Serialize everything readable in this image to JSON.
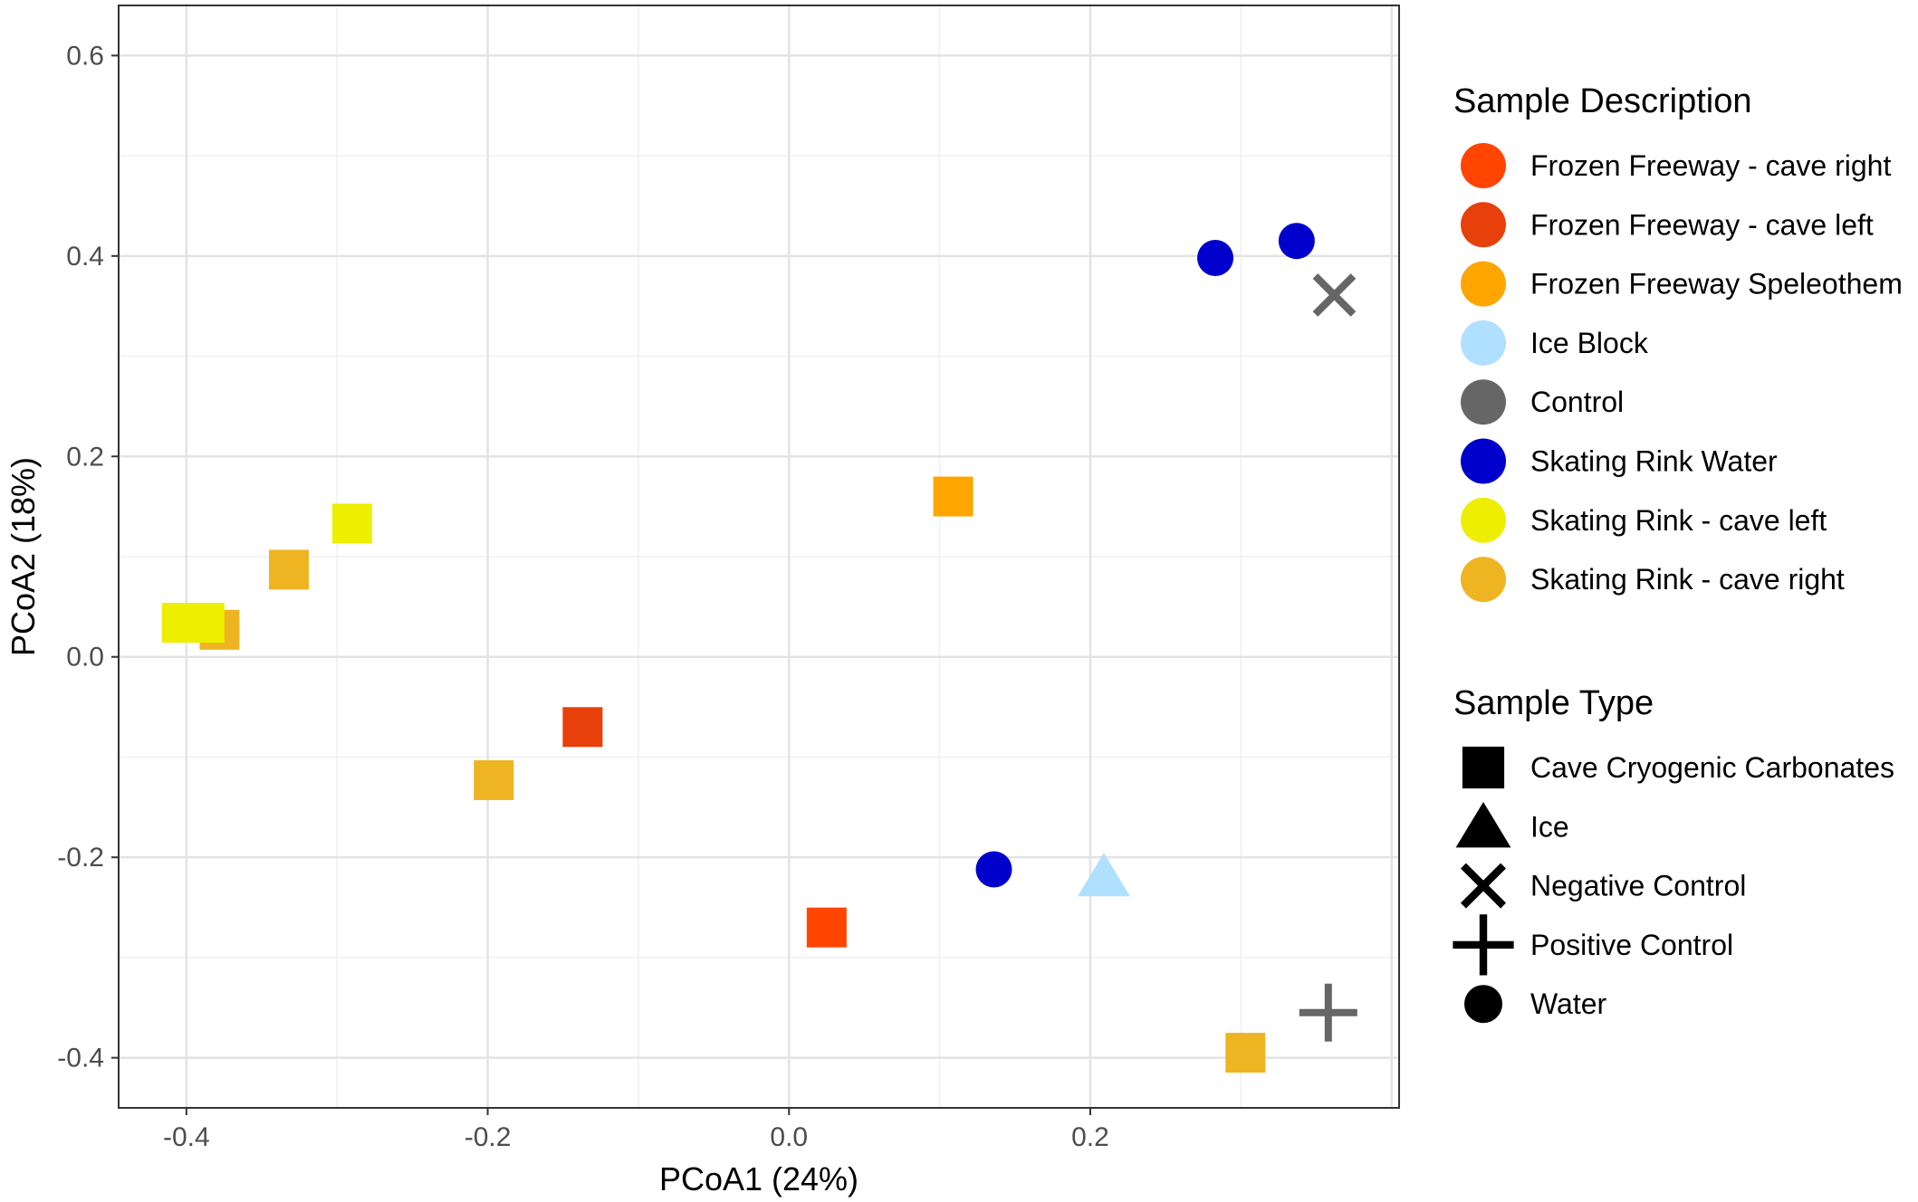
{
  "chart_data": {
    "type": "scatter",
    "xlabel": "PCoA1 (24%)",
    "ylabel": "PCoA2 (18%)",
    "xlim": [
      -0.445,
      0.405
    ],
    "ylim": [
      -0.45,
      0.65
    ],
    "x_ticks": [
      -0.4,
      -0.2,
      0.0,
      0.2
    ],
    "x_tick_labels": [
      "-0.4",
      "-0.2",
      "0.0",
      "0.2"
    ],
    "y_ticks": [
      -0.4,
      -0.2,
      0.0,
      0.2,
      0.4,
      0.6
    ],
    "y_tick_labels": [
      "-0.4",
      "-0.2",
      "0.0",
      "0.2",
      "0.4",
      "0.6"
    ],
    "grid": true,
    "legend_position": "right",
    "legends": [
      {
        "title": "Sample Description",
        "items": [
          {
            "label": "Frozen Freeway - cave right",
            "color": "#FF4500"
          },
          {
            "label": "Frozen Freeway - cave left",
            "color": "#E8400A"
          },
          {
            "label": "Frozen Freeway Speleothem",
            "color": "#FFA500"
          },
          {
            "label": "Ice Block",
            "color": "#B0E0FF"
          },
          {
            "label": "Control",
            "color": "#666666"
          },
          {
            "label": "Skating Rink Water",
            "color": "#0000CD"
          },
          {
            "label": "Skating Rink - cave left",
            "color": "#EEEE00"
          },
          {
            "label": "Skating Rink - cave right",
            "color": "#EEB422"
          }
        ]
      },
      {
        "title": "Sample Type",
        "items": [
          {
            "label": "Cave Cryogenic Carbonates",
            "shape": "square"
          },
          {
            "label": "Ice",
            "shape": "triangle"
          },
          {
            "label": "Negative Control",
            "shape": "cross"
          },
          {
            "label": "Positive Control",
            "shape": "plus"
          },
          {
            "label": "Water",
            "shape": "circle"
          }
        ]
      }
    ],
    "points": [
      {
        "x": 0.283,
        "y": 0.398,
        "color": "#0000CD",
        "shape": "circle"
      },
      {
        "x": 0.337,
        "y": 0.415,
        "color": "#0000CD",
        "shape": "circle"
      },
      {
        "x": 0.136,
        "y": -0.212,
        "color": "#0000CD",
        "shape": "circle"
      },
      {
        "x": 0.362,
        "y": 0.361,
        "color": "#666666",
        "shape": "cross"
      },
      {
        "x": 0.358,
        "y": -0.355,
        "color": "#666666",
        "shape": "plus"
      },
      {
        "x": 0.209,
        "y": -0.219,
        "color": "#B0E0FF",
        "shape": "triangle"
      },
      {
        "x": 0.109,
        "y": 0.16,
        "color": "#FFA500",
        "shape": "square"
      },
      {
        "x": -0.137,
        "y": -0.07,
        "color": "#E8400A",
        "shape": "square"
      },
      {
        "x": 0.025,
        "y": -0.27,
        "color": "#FF4500",
        "shape": "square"
      },
      {
        "x": -0.196,
        "y": -0.123,
        "color": "#EEB422",
        "shape": "square"
      },
      {
        "x": -0.332,
        "y": 0.087,
        "color": "#EEB422",
        "shape": "square"
      },
      {
        "x": -0.378,
        "y": 0.027,
        "color": "#EEB422",
        "shape": "square"
      },
      {
        "x": 0.303,
        "y": -0.395,
        "color": "#EEB422",
        "shape": "square"
      },
      {
        "x": -0.29,
        "y": 0.133,
        "color": "#EEEE00",
        "shape": "square"
      },
      {
        "x": -0.403,
        "y": 0.034,
        "color": "#EEEE00",
        "shape": "square"
      },
      {
        "x": -0.388,
        "y": 0.034,
        "color": "#EEEE00",
        "shape": "square"
      }
    ]
  }
}
